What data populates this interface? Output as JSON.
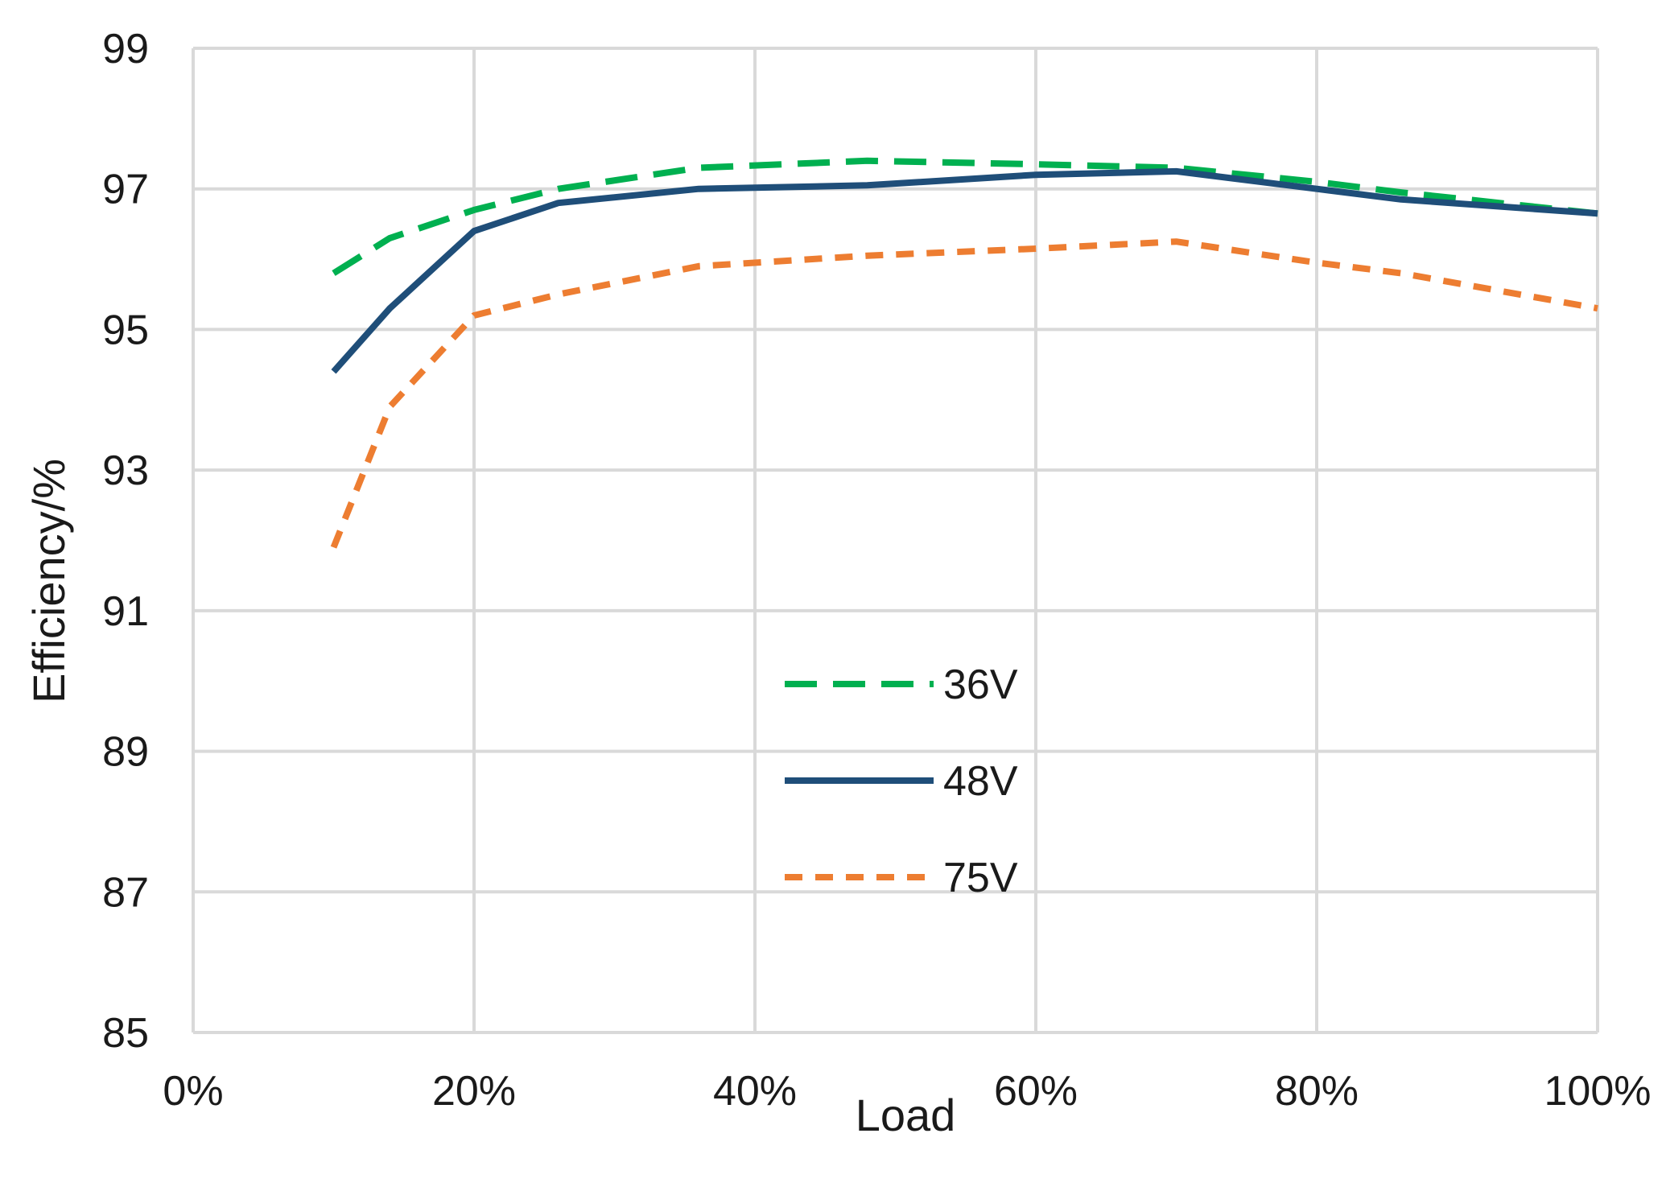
{
  "chart_data": {
    "type": "line",
    "title": "",
    "xlabel": "Load",
    "ylabel": "Efficiency/%",
    "xlim": [
      0,
      100
    ],
    "ylim": [
      85,
      99
    ],
    "x_ticks": [
      "0%",
      "20%",
      "40%",
      "60%",
      "80%",
      "100%"
    ],
    "x_tick_values": [
      0,
      20,
      40,
      60,
      80,
      100
    ],
    "y_ticks": [
      "85",
      "87",
      "89",
      "91",
      "93",
      "95",
      "97",
      "99"
    ],
    "y_tick_values": [
      85,
      87,
      89,
      91,
      93,
      95,
      97,
      99
    ],
    "grid": true,
    "legend_position": "center",
    "series": [
      {
        "name": "36V",
        "color": "#00b050",
        "style": "dashed",
        "x": [
          10,
          14,
          20,
          26,
          36,
          48,
          60,
          70,
          80,
          86,
          100
        ],
        "y": [
          95.8,
          96.3,
          96.7,
          97.0,
          97.3,
          97.4,
          97.35,
          97.3,
          97.1,
          96.95,
          96.65
        ]
      },
      {
        "name": "48V",
        "color": "#1f4e79",
        "style": "solid",
        "x": [
          10,
          14,
          20,
          26,
          36,
          48,
          60,
          70,
          80,
          86,
          100
        ],
        "y": [
          94.4,
          95.3,
          96.4,
          96.8,
          97.0,
          97.05,
          97.2,
          97.25,
          97.0,
          96.85,
          96.65
        ]
      },
      {
        "name": "75V",
        "color": "#ed7d31",
        "style": "dotted",
        "x": [
          10,
          14,
          20,
          26,
          36,
          48,
          60,
          70,
          80,
          86,
          100
        ],
        "y": [
          91.9,
          93.9,
          95.2,
          95.5,
          95.9,
          96.05,
          96.15,
          96.25,
          95.95,
          95.8,
          95.3
        ]
      }
    ]
  }
}
